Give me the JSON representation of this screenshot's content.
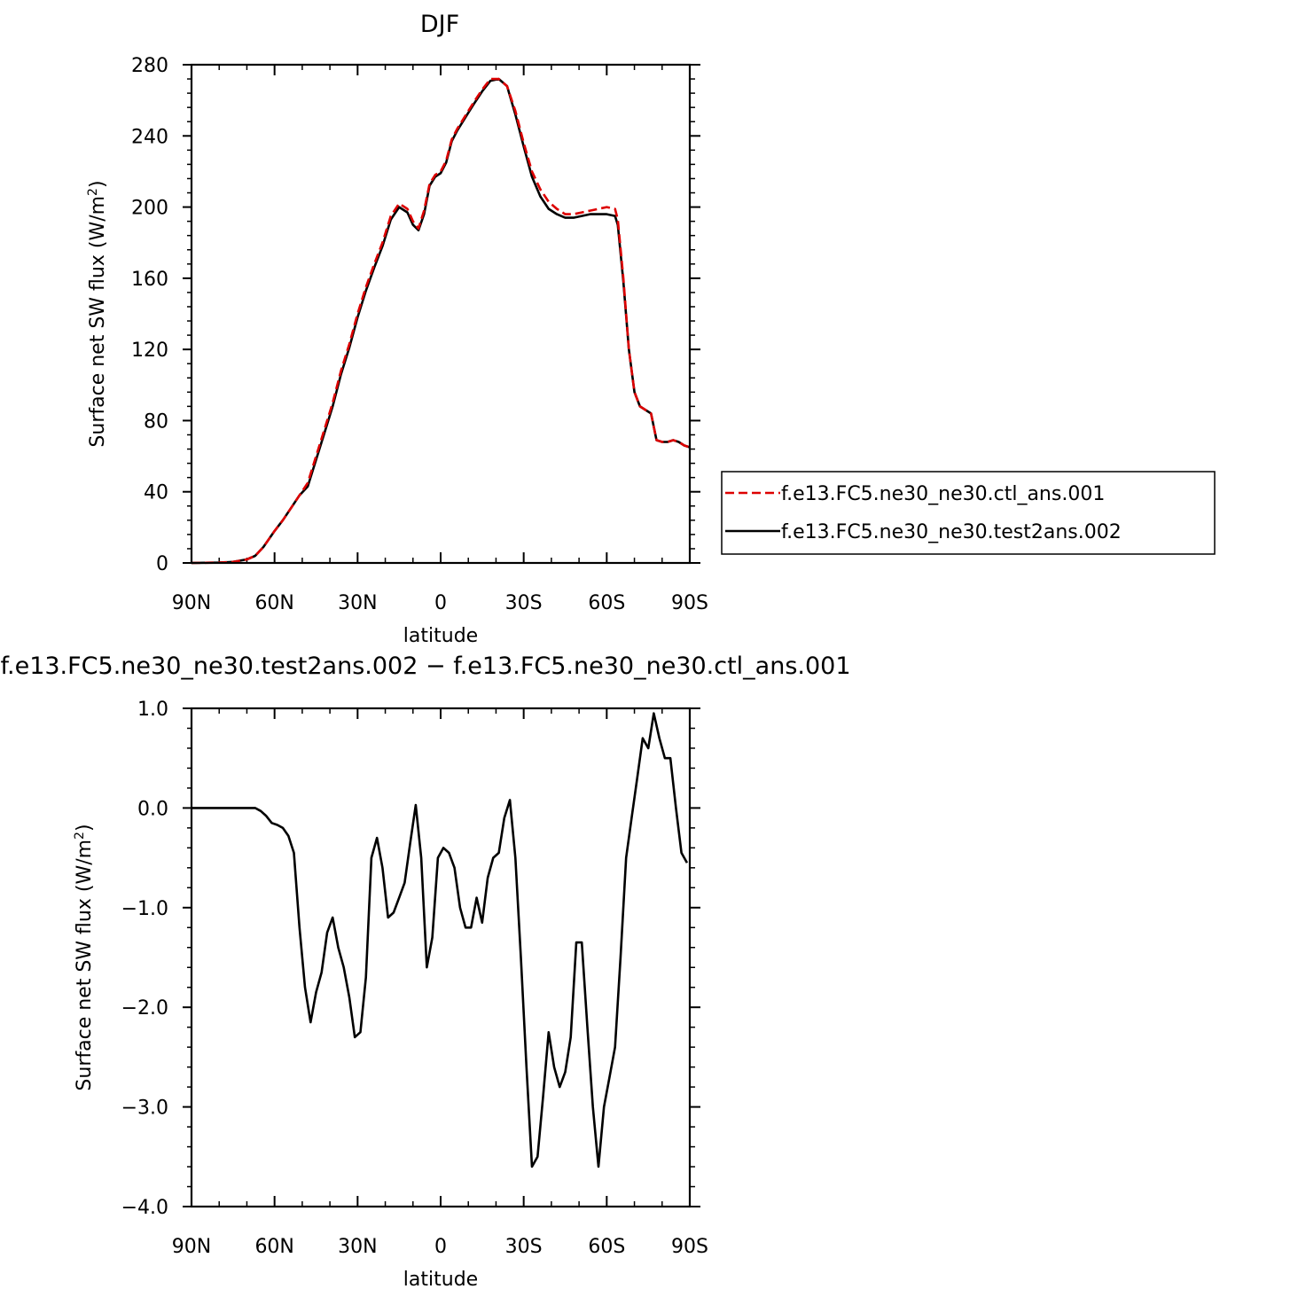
{
  "chart_data": [
    {
      "type": "line",
      "title": "DJF",
      "xlabel": "latitude",
      "ylabel": "Surface net SW flux (W/m²)",
      "ylabel_main": "Surface net SW flux (W/m",
      "ylabel_sup": "2",
      "ylabel_close": ")",
      "x_ticks": [
        90,
        60,
        30,
        0,
        -30,
        -60,
        -90
      ],
      "x_tick_labels": [
        "90N",
        "60N",
        "30N",
        "0",
        "30S",
        "60S",
        "90S"
      ],
      "xlim": [
        90,
        -90
      ],
      "ylim": [
        0,
        280
      ],
      "y_ticks": [
        0,
        40,
        80,
        120,
        160,
        200,
        240,
        280
      ],
      "y_tick_labels": [
        "0",
        "40",
        "80",
        "120",
        "160",
        "200",
        "240",
        "280"
      ],
      "legend_position": "right",
      "series": [
        {
          "name": "f.e13.FC5.ne30_ne30.ctl_ans.001",
          "color": "#dd0000",
          "dash": "dashed",
          "x": [
            90,
            80,
            75,
            70,
            67,
            64,
            60,
            57,
            54,
            51,
            48,
            45,
            42,
            39,
            36,
            33,
            30,
            27,
            24,
            21,
            18,
            15,
            12,
            10,
            8,
            6,
            4,
            2,
            0,
            -2,
            -4,
            -6,
            -8,
            -10,
            -12,
            -15,
            -18,
            -21,
            -24,
            -27,
            -30,
            -33,
            -36,
            -39,
            -42,
            -45,
            -48,
            -51,
            -54,
            -57,
            -60,
            -63,
            -64,
            -66,
            -68,
            -70,
            -72,
            -74,
            -76,
            -78,
            -80,
            -82,
            -84,
            -86,
            -88,
            -90
          ],
          "y": [
            0,
            0.2,
            0.6,
            2,
            4,
            9,
            18,
            24,
            31,
            38,
            45,
            60,
            75,
            90,
            108,
            123,
            140,
            155,
            168,
            180,
            195,
            202,
            199,
            192,
            188,
            198,
            213,
            218,
            220,
            226,
            238,
            244,
            249,
            254,
            259,
            266,
            272,
            272,
            268,
            254,
            236,
            220,
            210,
            203,
            199,
            196,
            196,
            197,
            198,
            199,
            200,
            199,
            193,
            160,
            120,
            96,
            88,
            86,
            84,
            69,
            68,
            68,
            69,
            68,
            66,
            65
          ]
        },
        {
          "name": "f.e13.FC5.ne30_ne30.test2ans.002",
          "color": "#000000",
          "dash": "solid",
          "x": [
            90,
            80,
            75,
            70,
            67,
            64,
            60,
            57,
            54,
            51,
            48,
            45,
            42,
            39,
            36,
            33,
            30,
            27,
            24,
            21,
            18,
            15,
            12,
            10,
            8,
            6,
            4,
            2,
            0,
            -2,
            -4,
            -6,
            -8,
            -10,
            -12,
            -15,
            -18,
            -21,
            -24,
            -27,
            -30,
            -33,
            -36,
            -39,
            -42,
            -45,
            -48,
            -51,
            -54,
            -57,
            -60,
            -63,
            -64,
            -66,
            -68,
            -70,
            -72,
            -74,
            -76,
            -78,
            -80,
            -82,
            -84,
            -86,
            -88,
            -90
          ],
          "y": [
            0,
            0.2,
            0.6,
            2,
            4,
            9,
            18,
            24,
            31,
            38,
            43,
            58,
            73,
            88,
            106,
            121,
            138,
            153,
            166,
            178,
            193,
            200,
            197,
            190,
            187,
            196,
            212,
            217,
            219,
            225,
            237,
            243,
            248,
            253,
            258,
            265,
            271,
            272,
            268,
            252,
            234,
            217,
            206,
            199,
            196,
            194,
            194,
            195,
            196,
            196,
            196,
            195,
            190,
            158,
            120,
            96,
            88,
            86,
            84,
            69,
            68,
            68,
            69,
            68,
            66,
            65
          ]
        }
      ]
    },
    {
      "type": "line",
      "title": "f.e13.FC5.ne30_ne30.test2ans.002 − f.e13.FC5.ne30_ne30.ctl_ans.001",
      "xlabel": "latitude",
      "ylabel": "Surface net SW flux (W/m²)",
      "ylabel_main": "Surface net SW flux (W/m",
      "ylabel_sup": "2",
      "ylabel_close": ")",
      "x_ticks": [
        90,
        60,
        30,
        0,
        -30,
        -60,
        -90
      ],
      "x_tick_labels": [
        "90N",
        "60N",
        "30N",
        "0",
        "30S",
        "60S",
        "90S"
      ],
      "xlim": [
        90,
        -90
      ],
      "ylim": [
        -4.0,
        1.0
      ],
      "y_ticks": [
        -4.0,
        -3.0,
        -2.0,
        -1.0,
        0.0,
        1.0
      ],
      "y_tick_labels": [
        "−4.0",
        "−3.0",
        "−2.0",
        "−1.0",
        "0.0",
        "1.0"
      ],
      "series": [
        {
          "color": "#000000",
          "dash": "solid",
          "x": [
            90,
            75,
            70,
            67,
            65,
            63,
            61,
            59,
            57,
            55,
            53,
            51,
            49,
            47,
            45,
            43,
            41,
            39,
            37,
            35,
            33,
            31,
            29,
            27,
            25,
            23,
            21,
            19,
            17,
            15,
            13,
            11,
            9,
            7,
            5,
            3,
            1,
            -1,
            -3,
            -5,
            -7,
            -9,
            -11,
            -13,
            -15,
            -17,
            -19,
            -21,
            -23,
            -25,
            -27,
            -29,
            -31,
            -33,
            -35,
            -37,
            -39,
            -41,
            -43,
            -45,
            -47,
            -49,
            -51,
            -53,
            -55,
            -57,
            -59,
            -61,
            -63,
            -65,
            -67,
            -69,
            -71,
            -73,
            -75,
            -77,
            -79,
            -81,
            -83,
            -85,
            -87,
            -89
          ],
          "y": [
            0,
            0,
            0,
            0,
            -0.03,
            -0.08,
            -0.15,
            -0.17,
            -0.2,
            -0.28,
            -0.45,
            -1.2,
            -1.8,
            -2.15,
            -1.85,
            -1.65,
            -1.25,
            -1.1,
            -1.4,
            -1.6,
            -1.9,
            -2.3,
            -2.25,
            -1.7,
            -0.5,
            -0.3,
            -0.6,
            -1.1,
            -1.05,
            -0.9,
            -0.75,
            -0.35,
            0.03,
            -0.5,
            -1.6,
            -1.3,
            -0.5,
            -0.4,
            -0.45,
            -0.6,
            -1.0,
            -1.2,
            -1.2,
            -0.9,
            -1.15,
            -0.7,
            -0.5,
            -0.45,
            -0.1,
            0.08,
            -0.5,
            -1.5,
            -2.6,
            -3.6,
            -3.5,
            -2.9,
            -2.25,
            -2.6,
            -2.8,
            -2.65,
            -2.3,
            -1.35,
            -1.35,
            -2.2,
            -3.0,
            -3.6,
            -3.0,
            -2.7,
            -2.4,
            -1.5,
            -0.5,
            -0.1,
            0.3,
            0.7,
            0.6,
            0.95,
            0.7,
            0.5,
            0.5,
            0.0,
            -0.45,
            -0.55
          ]
        }
      ]
    }
  ]
}
